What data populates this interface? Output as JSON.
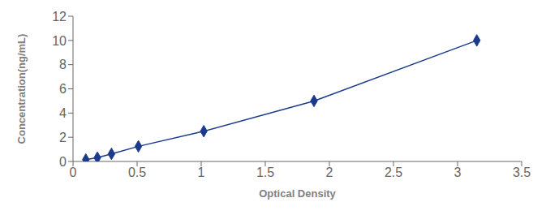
{
  "chart_data": {
    "type": "line",
    "xlabel": "Optical Density",
    "ylabel": "Concentration(ng/mL)",
    "x": [
      0.1,
      0.19,
      0.3,
      0.51,
      1.02,
      1.88,
      3.15
    ],
    "values": [
      0.156,
      0.312,
      0.625,
      1.25,
      2.5,
      5.0,
      10.0
    ],
    "color": "#1a3a8c",
    "marker": "diamond",
    "line_style": "solid",
    "xlim": [
      0.0,
      3.5
    ],
    "ylim": [
      0,
      12
    ],
    "xticks": [
      0,
      0.5,
      1,
      1.5,
      2,
      2.5,
      3,
      3.5
    ],
    "yticks": [
      0,
      2,
      4,
      6,
      8,
      10,
      12
    ],
    "grid": false
  }
}
